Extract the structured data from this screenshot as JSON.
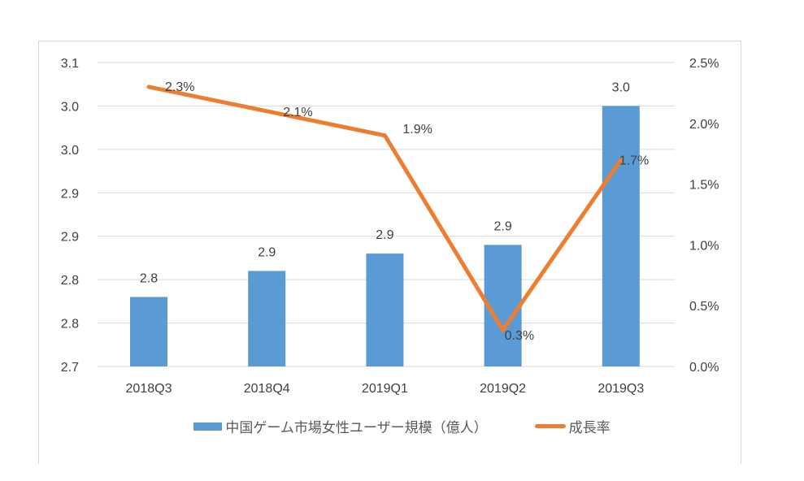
{
  "chart_data": {
    "type": "bar+line",
    "categories": [
      "2018Q3",
      "2018Q4",
      "2019Q1",
      "2019Q2",
      "2019Q3"
    ],
    "series": [
      {
        "name": "中国ゲーム市場女性ユーザー規模（億人）",
        "type": "bar",
        "axis": "left",
        "color": "#5b9bd5",
        "values": [
          2.83,
          2.86,
          2.88,
          2.89,
          3.05
        ],
        "labels": [
          "2.8",
          "2.9",
          "2.9",
          "2.9",
          "3.0"
        ]
      },
      {
        "name": "成長率",
        "type": "line",
        "axis": "right",
        "color": "#ed7d31",
        "values": [
          2.3,
          2.1,
          1.9,
          0.3,
          1.7
        ],
        "labels": [
          "2.3%",
          "2.1%",
          "1.9%",
          "0.3%",
          "1.7%"
        ]
      }
    ],
    "left_axis": {
      "ylim": [
        2.75,
        3.1
      ],
      "ticks": [
        "3.1",
        "3.0",
        "3.0",
        "2.9",
        "2.9",
        "2.8",
        "2.8",
        "2.7"
      ]
    },
    "right_axis": {
      "ylim": [
        0,
        2.5
      ],
      "ticks": [
        "2.5%",
        "2.0%",
        "1.5%",
        "1.0%",
        "0.5%",
        "0.0%"
      ]
    },
    "grid": true,
    "legend": "bottom"
  }
}
